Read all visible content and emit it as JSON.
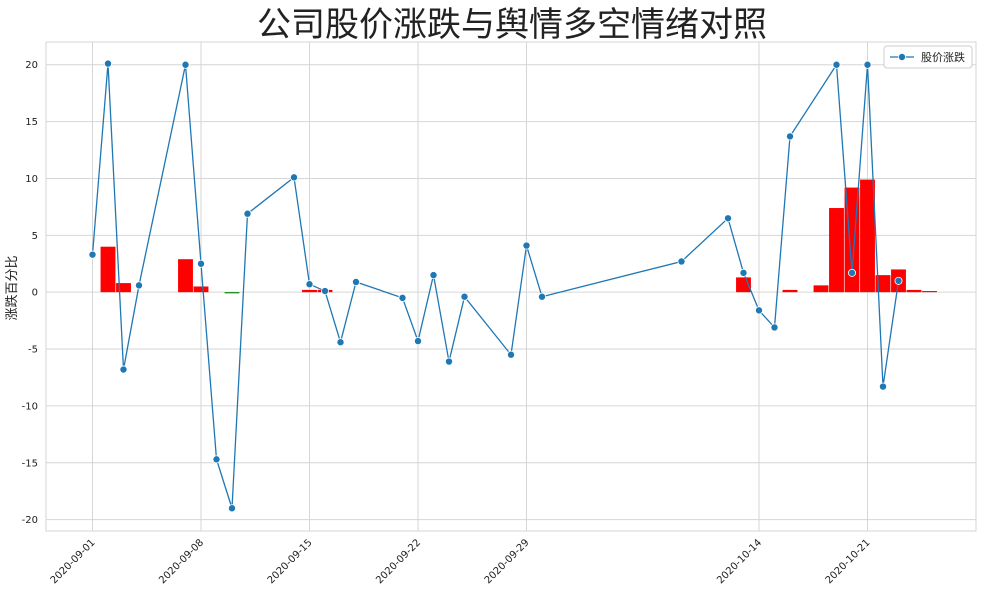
{
  "chart_data": {
    "type": "line",
    "title": "公司股价涨跌与舆情多空情绪对照",
    "y_label": "涨跌百分比",
    "xlim": [
      "2020-08-29",
      "2020-10-28"
    ],
    "xticks": [
      "2020-09-01",
      "2020-09-08",
      "2020-09-15",
      "2020-09-22",
      "2020-09-29",
      "2020-10-14",
      "2020-10-21"
    ],
    "ylim": [
      -21,
      22
    ],
    "yticks": [
      -20,
      -15,
      -10,
      -5,
      0,
      5,
      10,
      15,
      20
    ],
    "grid": true,
    "legend": "upper right",
    "series": [
      {
        "name": "股价涨跌",
        "type": "line",
        "color": "#1f77b4",
        "x": [
          "2020-09-01",
          "2020-09-02",
          "2020-09-03",
          "2020-09-04",
          "2020-09-07",
          "2020-09-08",
          "2020-09-09",
          "2020-09-10",
          "2020-09-11",
          "2020-09-14",
          "2020-09-15",
          "2020-09-16",
          "2020-09-17",
          "2020-09-18",
          "2020-09-21",
          "2020-09-22",
          "2020-09-23",
          "2020-09-24",
          "2020-09-25",
          "2020-09-28",
          "2020-09-29",
          "2020-09-30",
          "2020-10-09",
          "2020-10-12",
          "2020-10-13",
          "2020-10-14",
          "2020-10-15",
          "2020-10-16",
          "2020-10-19",
          "2020-10-20",
          "2020-10-21",
          "2020-10-22",
          "2020-10-23"
        ],
        "values": [
          3.3,
          20.1,
          -6.8,
          0.6,
          20.0,
          2.5,
          -14.7,
          -19.0,
          6.9,
          10.1,
          0.7,
          0.1,
          -4.4,
          0.9,
          -0.5,
          -4.3,
          1.5,
          -6.1,
          -0.4,
          -5.5,
          4.1,
          -0.4,
          2.7,
          6.5,
          1.7,
          -1.6,
          -3.1,
          13.7,
          20.0,
          1.7,
          20.0,
          -8.3,
          1.0
        ]
      },
      {
        "type": "bar",
        "color": "#ff0000",
        "negative_color": "#008000",
        "x": [
          "2020-09-02",
          "2020-09-03",
          "2020-09-07",
          "2020-09-08",
          "2020-09-10",
          "2020-09-15",
          "2020-09-16",
          "2020-10-13",
          "2020-10-16",
          "2020-10-18",
          "2020-10-19",
          "2020-10-20",
          "2020-10-21",
          "2020-10-22",
          "2020-10-23",
          "2020-10-24",
          "2020-10-25"
        ],
        "values": [
          4.0,
          0.8,
          2.9,
          0.5,
          -0.1,
          0.2,
          0.2,
          1.3,
          0.2,
          0.6,
          7.4,
          9.2,
          9.9,
          1.5,
          2.0,
          0.2,
          0.1
        ]
      }
    ]
  }
}
